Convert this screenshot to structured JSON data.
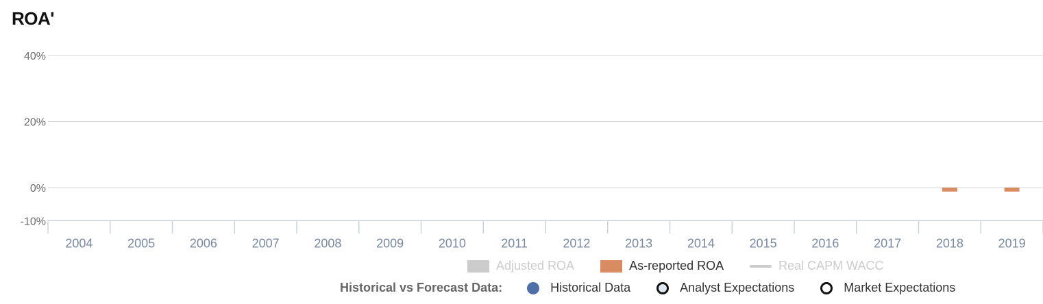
{
  "title": "ROA'",
  "chart_data": {
    "type": "bar",
    "categories": [
      "2004",
      "2005",
      "2006",
      "2007",
      "2008",
      "2009",
      "2010",
      "2011",
      "2012",
      "2013",
      "2014",
      "2015",
      "2016",
      "2017",
      "2018",
      "2019"
    ],
    "y_ticks": [
      {
        "value": 40,
        "label": "40%"
      },
      {
        "value": 20,
        "label": "20%"
      },
      {
        "value": 0,
        "label": "0%"
      },
      {
        "value": -10,
        "label": "-10%"
      }
    ],
    "ylim": [
      -10,
      40
    ],
    "grid": true,
    "series": [
      {
        "name": "Adjusted ROA",
        "color": "#cccccc",
        "enabled": false,
        "values": [
          null,
          null,
          null,
          null,
          null,
          null,
          null,
          null,
          null,
          null,
          null,
          null,
          null,
          null,
          null,
          null
        ]
      },
      {
        "name": "As-reported ROA",
        "color": "#d98b62",
        "enabled": true,
        "values": [
          null,
          null,
          null,
          null,
          null,
          null,
          null,
          null,
          null,
          null,
          null,
          null,
          null,
          null,
          -1.2,
          -1.2
        ]
      },
      {
        "name": "Real CAPM WACC",
        "color": "#cccccc",
        "enabled": false,
        "type": "line",
        "values": [
          null,
          null,
          null,
          null,
          null,
          null,
          null,
          null,
          null,
          null,
          null,
          null,
          null,
          null,
          null,
          null
        ]
      }
    ]
  },
  "legend": {
    "items": [
      {
        "label": "Adjusted ROA",
        "color": "#cccccc",
        "text_color": "#cccccc"
      },
      {
        "label": "As-reported ROA",
        "color": "#d98b62",
        "text_color": "#333333"
      },
      {
        "label": "Real CAPM WACC",
        "color": "#cccccc",
        "text_color": "#cccccc"
      }
    ],
    "historical_label": "Historical vs Forecast Data:",
    "data_types": [
      {
        "label": "Historical Data",
        "color": "#4e6fa8"
      },
      {
        "label": "Analyst Expectations",
        "color": "#dde6f2"
      },
      {
        "label": "Market Expectations",
        "color": "#ffffff"
      }
    ]
  }
}
